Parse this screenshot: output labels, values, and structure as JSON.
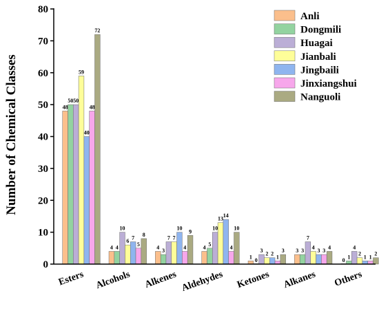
{
  "chart_data": {
    "type": "bar",
    "title": "",
    "xlabel": "",
    "ylabel": "Number of Chemical Classes",
    "ylim": [
      0,
      80
    ],
    "yticks": [
      0,
      10,
      20,
      30,
      40,
      50,
      60,
      70,
      80
    ],
    "grid": false,
    "legend_position": "top-right",
    "categories": [
      "Esters",
      "Alcohols",
      "Alkenes",
      "Aldehydes",
      "Ketones",
      "Alkanes",
      "Others"
    ],
    "series": [
      {
        "name": "Anli",
        "color": "#FBBF8C",
        "values": [
          48,
          4,
          4,
          4,
          1,
          3,
          0
        ]
      },
      {
        "name": "Dongmili",
        "color": "#93D3A0",
        "values": [
          50,
          4,
          3,
          5,
          0,
          3,
          1
        ]
      },
      {
        "name": "Huagai",
        "color": "#BBAED6",
        "values": [
          50,
          10,
          7,
          10,
          3,
          7,
          4
        ]
      },
      {
        "name": "Jianbali",
        "color": "#FEFE99",
        "values": [
          59,
          6,
          7,
          13,
          2,
          4,
          2
        ]
      },
      {
        "name": "Jingbaili",
        "color": "#8FB5EF",
        "values": [
          40,
          7,
          10,
          14,
          2,
          3,
          1
        ]
      },
      {
        "name": "Jinxiangshui",
        "color": "#F7A7EB",
        "values": [
          48,
          5,
          4,
          4,
          1,
          3,
          1
        ]
      },
      {
        "name": "Nanguoli",
        "color": "#AAAA82",
        "values": [
          72,
          8,
          9,
          10,
          3,
          4,
          2
        ]
      }
    ]
  }
}
